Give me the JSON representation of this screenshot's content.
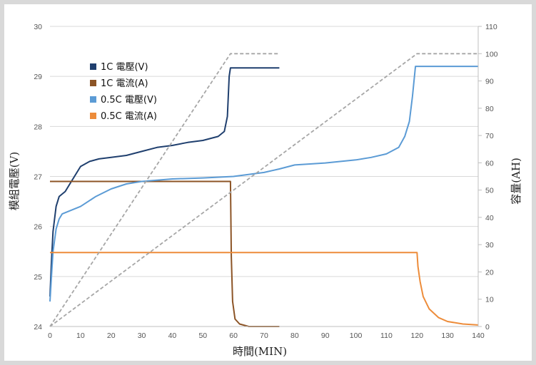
{
  "chart_data": {
    "type": "line",
    "xlabel": "時間(MIN)",
    "ylabel_left": "模組電壓(V)",
    "ylabel_right": "容量(AH)",
    "xlim": [
      0,
      140
    ],
    "ylim_left": [
      24,
      30
    ],
    "ylim_right": [
      0,
      110
    ],
    "x_ticks": [
      0,
      10,
      20,
      30,
      40,
      50,
      60,
      70,
      80,
      90,
      100,
      110,
      120,
      130,
      140
    ],
    "y_left_ticks": [
      24,
      25,
      26,
      27,
      28,
      29,
      30
    ],
    "y_right_ticks": [
      0,
      10,
      20,
      30,
      40,
      50,
      60,
      70,
      80,
      90,
      100,
      110
    ],
    "grid": "horizontal",
    "legend_position": "top-left",
    "colors": {
      "v1c": "#1f3f6e",
      "i1c": "#8c5426",
      "v05c": "#5b9bd5",
      "i05c": "#ed8c3a",
      "capacity": "#a6a6a6"
    },
    "series": [
      {
        "name": "1C 電壓(V)",
        "axis": "left",
        "points": [
          [
            0,
            24.6
          ],
          [
            0.5,
            25.3
          ],
          [
            1,
            25.9
          ],
          [
            2,
            26.4
          ],
          [
            3,
            26.6
          ],
          [
            5,
            26.7
          ],
          [
            7,
            26.9
          ],
          [
            10,
            27.2
          ],
          [
            13,
            27.3
          ],
          [
            16,
            27.35
          ],
          [
            20,
            27.38
          ],
          [
            25,
            27.42
          ],
          [
            30,
            27.5
          ],
          [
            35,
            27.58
          ],
          [
            40,
            27.62
          ],
          [
            45,
            27.68
          ],
          [
            50,
            27.72
          ],
          [
            55,
            27.8
          ],
          [
            57,
            27.9
          ],
          [
            58,
            28.2
          ],
          [
            58.6,
            29.0
          ],
          [
            59,
            29.17
          ],
          [
            62,
            29.17
          ],
          [
            75,
            29.17
          ]
        ]
      },
      {
        "name": "1C 電流(A)",
        "axis": "left",
        "points": [
          [
            0,
            26.9
          ],
          [
            59,
            26.9
          ],
          [
            59.3,
            25.4
          ],
          [
            59.7,
            24.5
          ],
          [
            60.5,
            24.15
          ],
          [
            62,
            24.05
          ],
          [
            65,
            24.0
          ],
          [
            75,
            24.0
          ]
        ]
      },
      {
        "name": "0.5C 電壓(V)",
        "axis": "left",
        "points": [
          [
            0,
            24.5
          ],
          [
            0.5,
            25.0
          ],
          [
            1,
            25.5
          ],
          [
            2,
            25.95
          ],
          [
            3,
            26.15
          ],
          [
            4,
            26.25
          ],
          [
            6,
            26.3
          ],
          [
            10,
            26.4
          ],
          [
            15,
            26.6
          ],
          [
            20,
            26.75
          ],
          [
            25,
            26.85
          ],
          [
            30,
            26.9
          ],
          [
            40,
            26.95
          ],
          [
            50,
            26.97
          ],
          [
            60,
            27.0
          ],
          [
            70,
            27.08
          ],
          [
            75,
            27.15
          ],
          [
            80,
            27.23
          ],
          [
            90,
            27.27
          ],
          [
            100,
            27.33
          ],
          [
            105,
            27.38
          ],
          [
            110,
            27.45
          ],
          [
            114,
            27.58
          ],
          [
            116,
            27.8
          ],
          [
            117.5,
            28.1
          ],
          [
            118.5,
            28.6
          ],
          [
            119.5,
            29.2
          ],
          [
            122,
            29.2
          ],
          [
            140,
            29.2
          ]
        ]
      },
      {
        "name": "0.5C 電流(A)",
        "axis": "left",
        "points": [
          [
            0,
            25.48
          ],
          [
            120,
            25.48
          ],
          [
            120.3,
            25.2
          ],
          [
            121,
            24.9
          ],
          [
            122,
            24.6
          ],
          [
            124,
            24.35
          ],
          [
            127,
            24.18
          ],
          [
            130,
            24.1
          ],
          [
            135,
            24.05
          ],
          [
            140,
            24.03
          ]
        ]
      },
      {
        "axis": "right",
        "style": "dashed",
        "points": [
          [
            0,
            0
          ],
          [
            59,
            100
          ],
          [
            60,
            100
          ],
          [
            75,
            100
          ]
        ]
      },
      {
        "axis": "right",
        "style": "dashed",
        "points": [
          [
            0,
            0
          ],
          [
            120,
            100
          ],
          [
            122,
            100
          ],
          [
            140,
            100
          ]
        ]
      }
    ]
  }
}
